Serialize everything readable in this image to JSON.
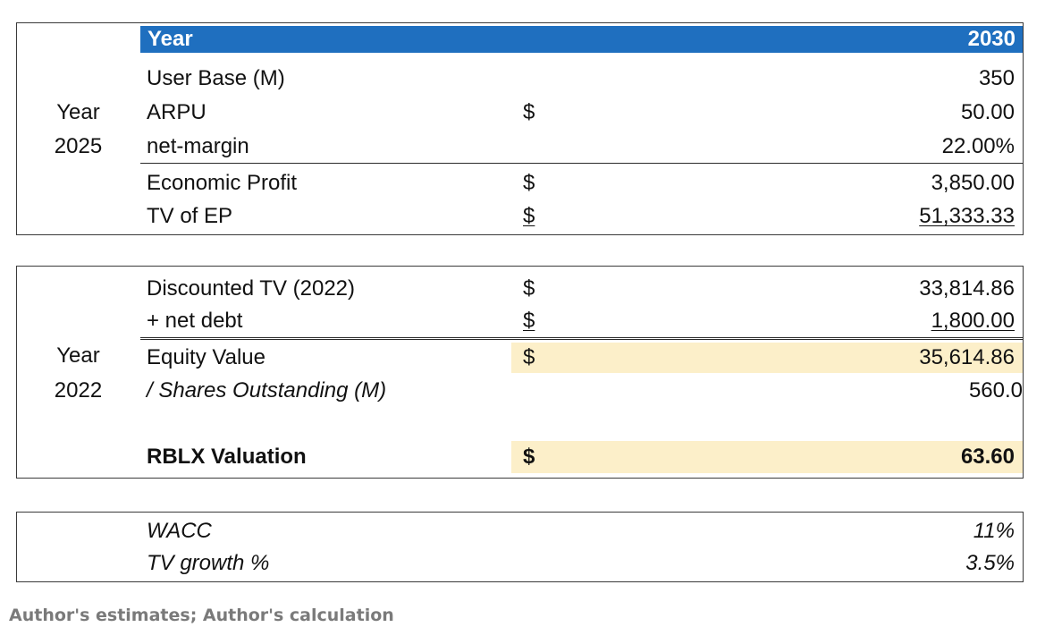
{
  "section1": {
    "side_line1": "Year",
    "side_line2": "2025",
    "header": {
      "label": "Year",
      "value": "2030"
    },
    "rows": [
      {
        "label": "User Base (M)",
        "dollar": "",
        "value": "350"
      },
      {
        "label": "ARPU",
        "dollar": "$",
        "value": "50.00"
      },
      {
        "label": "net-margin",
        "dollar": "",
        "value": "22.00%"
      },
      {
        "label": "Economic Profit",
        "dollar": "$",
        "value": "3,850.00"
      },
      {
        "label": "TV of EP",
        "dollar": "$",
        "value": "51,333.33"
      }
    ]
  },
  "section2": {
    "side_line1": "Year",
    "side_line2": "2022",
    "rows": [
      {
        "label": "Discounted TV (2022)",
        "dollar": "$",
        "value": "33,814.86"
      },
      {
        "label": "+ net debt",
        "dollar": "$",
        "value": "1,800.00"
      },
      {
        "label": "Equity Value",
        "dollar": "$",
        "value": "35,614.86"
      },
      {
        "label": "/ Shares Outstanding (M)",
        "dollar": "",
        "value": "560.0"
      },
      {
        "label": "RBLX Valuation",
        "dollar": "$",
        "value": "63.60"
      }
    ]
  },
  "section3": {
    "rows": [
      {
        "label": "WACC",
        "value": "11%"
      },
      {
        "label": "TV growth %",
        "value": "3.5%"
      }
    ]
  },
  "caption": "Author's estimates; Author's calculation",
  "colors": {
    "header_bg": "#1f6fbf",
    "highlight_bg": "#fcefc9",
    "caption_text": "#7a7a7a"
  }
}
